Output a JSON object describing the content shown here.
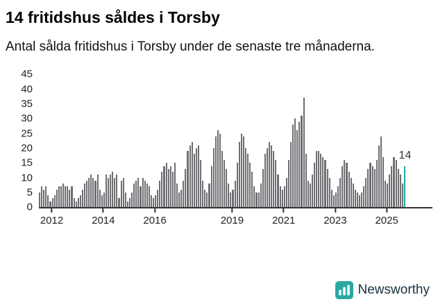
{
  "header": {
    "title": "14 fritidshus såldes i Torsby",
    "subtitle": "Antal sålda fritidshus i Torsby under de senaste tre månaderna."
  },
  "footer": {
    "brand": "Newsworthy"
  },
  "colors": {
    "bar": "#6d6d72",
    "highlight": "#1fa7a0",
    "axis": "#333333",
    "brand_teal": "#2ba7a2",
    "brand_text": "#16323e"
  },
  "chart_data": {
    "type": "bar",
    "title": "14 fritidshus såldes i Torsby",
    "xlabel": "",
    "ylabel": "",
    "x_unit": "month",
    "x_start": "2011-07",
    "x_end": "2025-09",
    "ylim": [
      0,
      45
    ],
    "yticks": [
      0,
      5,
      10,
      15,
      20,
      25,
      30,
      35,
      40,
      45
    ],
    "xticks": [
      {
        "label": "2012",
        "index": 6
      },
      {
        "label": "2014",
        "index": 30
      },
      {
        "label": "2016",
        "index": 54
      },
      {
        "label": "2019",
        "index": 90
      },
      {
        "label": "2021",
        "index": 114
      },
      {
        "label": "2023",
        "index": 138
      },
      {
        "label": "2025",
        "index": 162
      }
    ],
    "grid": false,
    "legend": null,
    "highlight_index": 170,
    "highlight_value": 14,
    "highlight_label": "14",
    "values": [
      5,
      7,
      6,
      7,
      4,
      2,
      3,
      4,
      6,
      7,
      7,
      8,
      7,
      7,
      6,
      7,
      3,
      2,
      3,
      4,
      6,
      8,
      9,
      10,
      11,
      10,
      9,
      11,
      6,
      4,
      5,
      11,
      10,
      11,
      12,
      10,
      11,
      3,
      9,
      10,
      5,
      2,
      3,
      5,
      8,
      9,
      10,
      7,
      10,
      9,
      8,
      7,
      4,
      3,
      4,
      6,
      9,
      12,
      14,
      15,
      13,
      14,
      12,
      15,
      8,
      5,
      6,
      9,
      13,
      19,
      21,
      22,
      18,
      20,
      21,
      16,
      9,
      6,
      5,
      8,
      14,
      20,
      24,
      26,
      25,
      19,
      16,
      13,
      8,
      5,
      6,
      9,
      15,
      22,
      25,
      24,
      20,
      18,
      15,
      12,
      7,
      5,
      5,
      8,
      13,
      18,
      20,
      22,
      21,
      19,
      16,
      11,
      7,
      6,
      7,
      10,
      16,
      22,
      28,
      30,
      26,
      29,
      31,
      37,
      18,
      9,
      8,
      11,
      15,
      19,
      19,
      18,
      17,
      16,
      13,
      10,
      6,
      4,
      5,
      7,
      10,
      14,
      16,
      15,
      12,
      10,
      8,
      6,
      5,
      4,
      5,
      7,
      10,
      13,
      15,
      14,
      13,
      16,
      21,
      24,
      17,
      9,
      8,
      11,
      14,
      17,
      16,
      13,
      11,
      8,
      14
    ]
  }
}
